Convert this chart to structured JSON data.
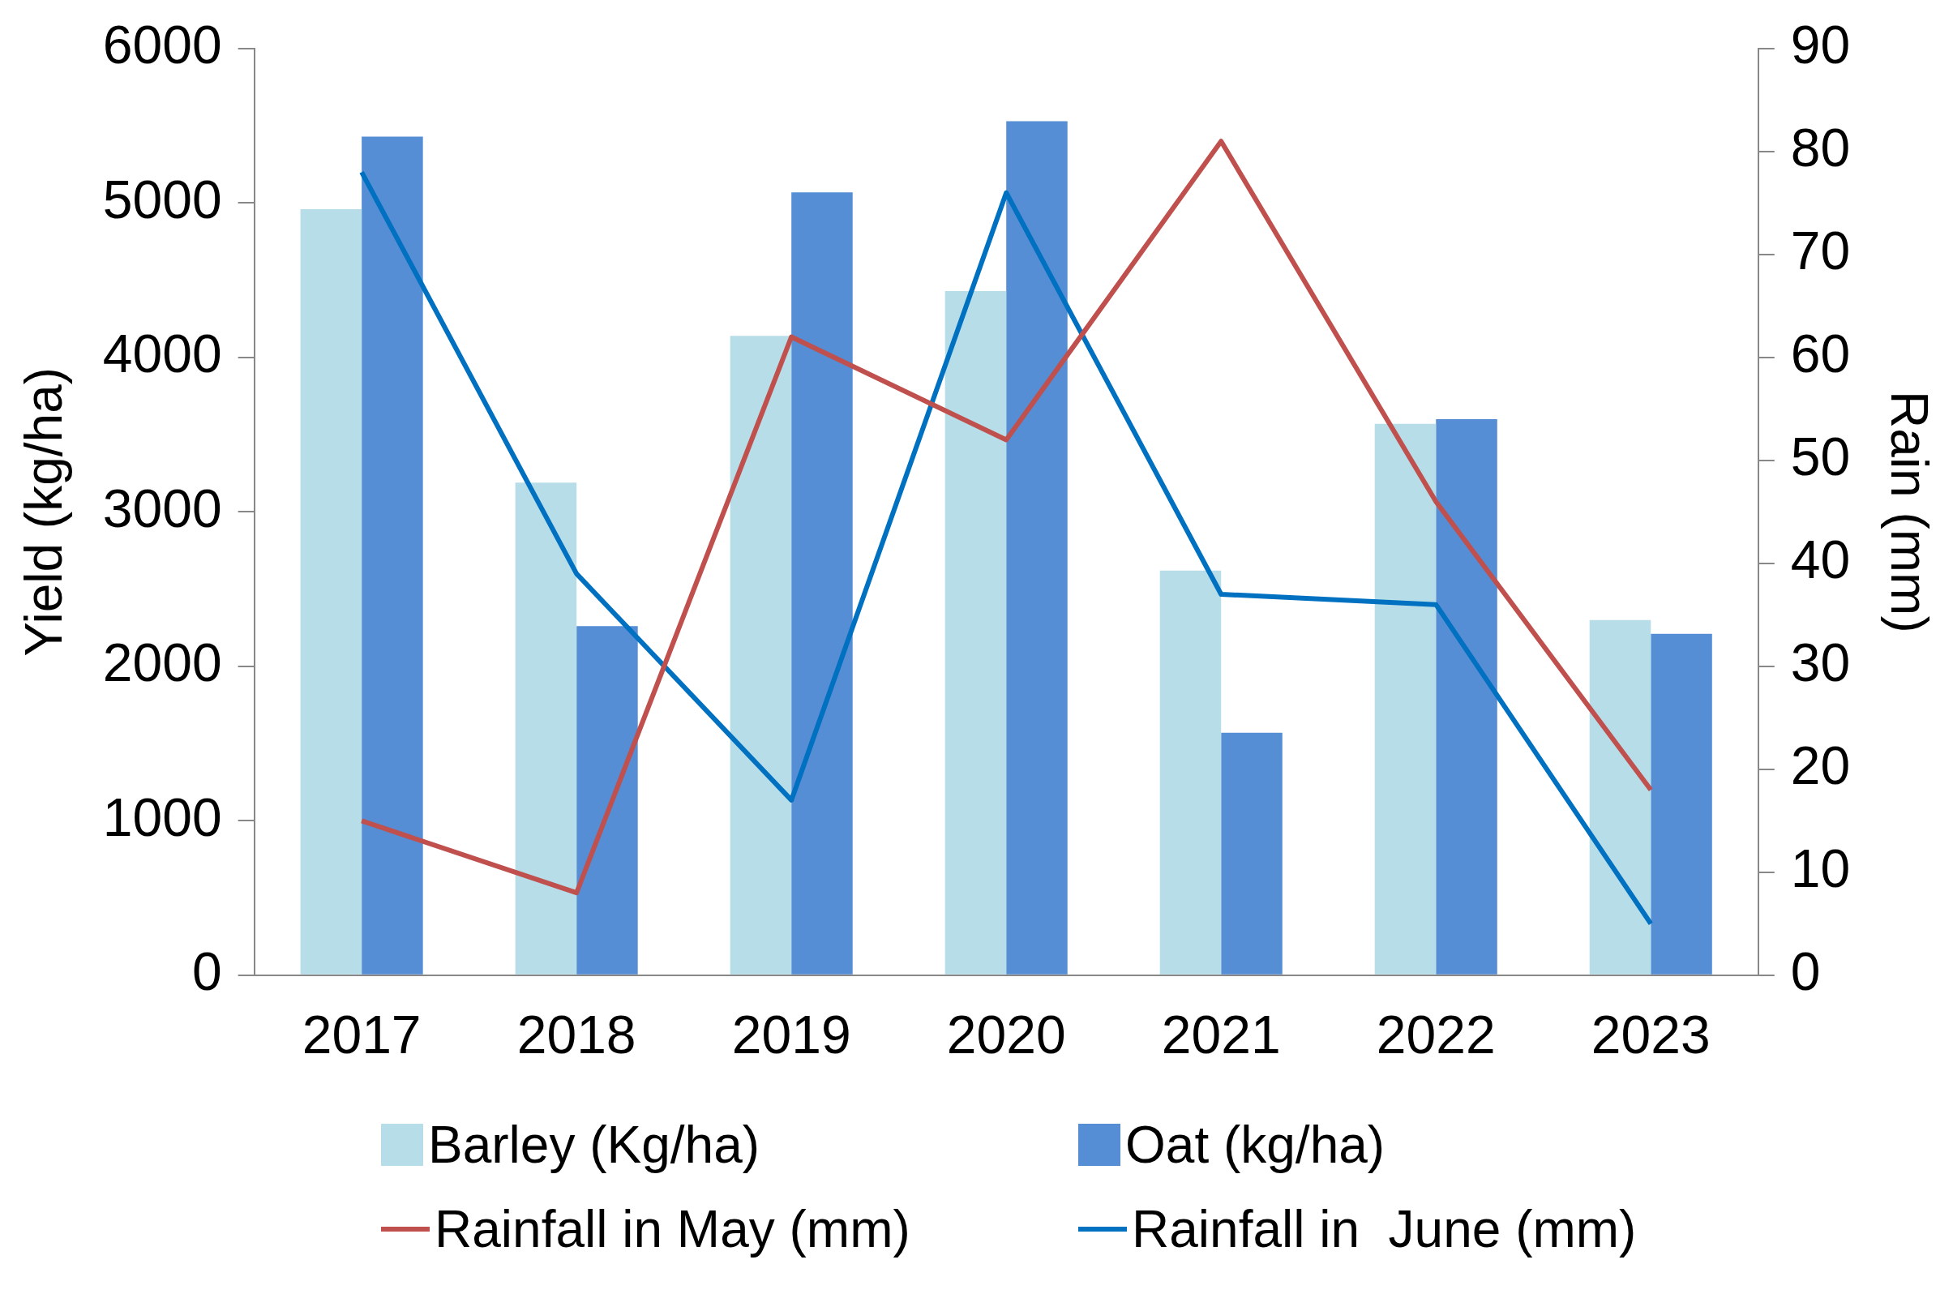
{
  "chart_data": {
    "type": "bar",
    "ylabel": "Yield (kg/ha)",
    "y2label": "Rain (mm)",
    "categories": [
      "2017",
      "2018",
      "2019",
      "2020",
      "2021",
      "2022",
      "2023"
    ],
    "series": [
      {
        "name": "Barley (Kg/ha)",
        "color": "#b7dde8",
        "values": [
          4960,
          3190,
          4140,
          4430,
          2620,
          3570,
          2300
        ]
      },
      {
        "name": "Oat (kg/ha)",
        "color": "#558ed5",
        "values": [
          5430,
          2260,
          5070,
          5530,
          1570,
          3600,
          2210
        ]
      },
      {
        "name": "Rainfall in May (mm)",
        "type": "line",
        "axis": "y2",
        "color": "#c0504d",
        "values": [
          15,
          8,
          62,
          52,
          81,
          46,
          18
        ]
      },
      {
        "name": "Rainfall in  June (mm)",
        "type": "line",
        "axis": "y2",
        "color": "#0070c0",
        "values": [
          78,
          39,
          17,
          76,
          37,
          36,
          5
        ]
      }
    ],
    "ylim": [
      0,
      6000
    ],
    "yticks": [
      0,
      1000,
      2000,
      3000,
      4000,
      5000,
      6000
    ],
    "y2lim": [
      0,
      90
    ],
    "y2ticks": [
      0,
      10,
      20,
      30,
      40,
      50,
      60,
      70,
      80,
      90
    ],
    "grid": false,
    "legend": "bottom",
    "marker": "none",
    "line_style": "solid"
  }
}
